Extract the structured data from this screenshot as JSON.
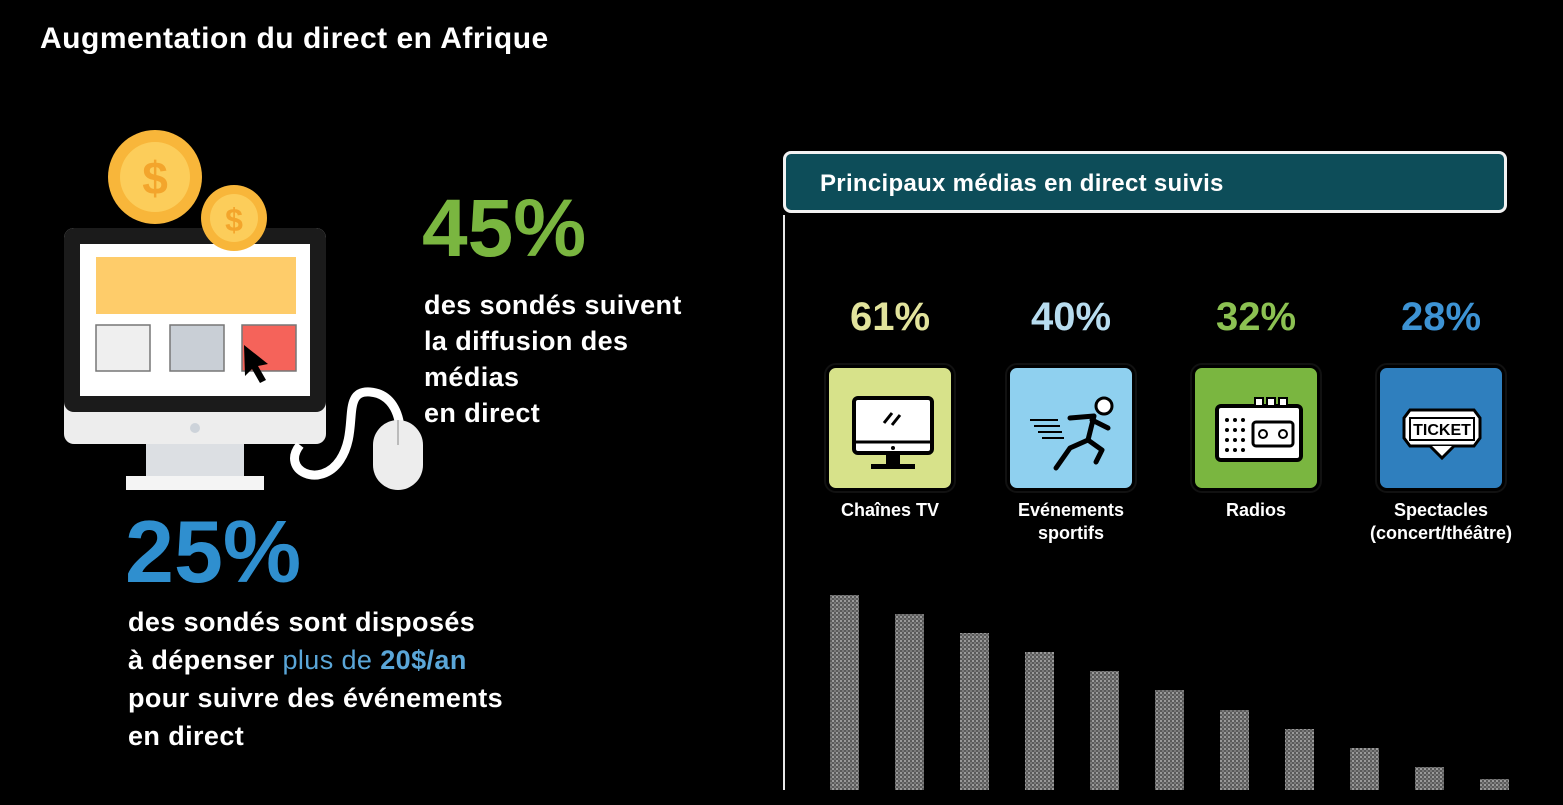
{
  "title": "Augmentation du direct en Afrique",
  "stats": {
    "main": {
      "value": "45%",
      "desc": [
        "des sondés suivent",
        "la diffusion des",
        "médias",
        "en direct"
      ]
    },
    "secondary": {
      "value": "25%",
      "desc_line1": "des sondés sont disposés",
      "desc_line2_pre": "à dépenser ",
      "desc_line2_plus": "plus de ",
      "desc_line2_amount": "20$/an",
      "desc_line3": "pour suivre des événements",
      "desc_line4": "en direct"
    }
  },
  "panel": {
    "title": "Principaux médias en direct suivis",
    "items": [
      {
        "pct": "61%",
        "label": "Chaînes TV",
        "icon": "tv-icon",
        "color": "#d7e28a",
        "pct_color": "#e2e39c"
      },
      {
        "pct": "40%",
        "label": "Evénements sportifs",
        "icon": "runner-icon",
        "color": "#8fd0ef",
        "pct_color": "#b7dcef"
      },
      {
        "pct": "32%",
        "label": "Radios",
        "icon": "radio-icon",
        "color": "#7ab640",
        "pct_color": "#8cc152"
      },
      {
        "pct": "28%",
        "label": "Spectacles (concert/théâtre)",
        "icon": "ticket-icon",
        "color": "#2f7fbe",
        "pct_color": "#3d93d4"
      }
    ]
  },
  "illustration": {
    "coin_symbol": "$",
    "icons": [
      "coin-icon",
      "monitor-icon",
      "mouse-icon",
      "cursor-icon"
    ]
  },
  "decor_bars": [
    195,
    176,
    157,
    138,
    119,
    100,
    80,
    61,
    42,
    23,
    11
  ]
}
